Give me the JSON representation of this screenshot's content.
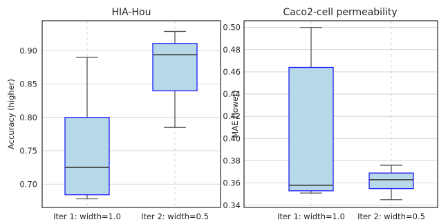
{
  "chart_data": [
    {
      "type": "box",
      "title": "HIA-Hou",
      "xlabel": "",
      "ylabel": "Accuracy (higher)",
      "categories": [
        "Iter 1: width=1.0",
        "Iter 2: width=0.5"
      ],
      "ylim": [
        0.665,
        0.945
      ],
      "yticks": [
        0.7,
        0.75,
        0.8,
        0.85,
        0.9
      ],
      "ytick_labels": [
        "0.70",
        "0.75",
        "0.80",
        "0.85",
        "0.90"
      ],
      "boxes": [
        {
          "min": 0.678,
          "q1": 0.684,
          "median": 0.725,
          "q3": 0.8,
          "max": 0.89
        },
        {
          "min": 0.785,
          "q1": 0.84,
          "median": 0.894,
          "q3": 0.911,
          "max": 0.929
        }
      ],
      "grid": true,
      "box_fill": "#b7d8e6",
      "box_edge": "#1a1aff"
    },
    {
      "type": "box",
      "title": "Caco2-cell permeability",
      "xlabel": "",
      "ylabel": "MAE (lower)",
      "categories": [
        "Iter 1: width=1.0",
        "Iter 2: width=0.5"
      ],
      "ylim": [
        0.338,
        0.506
      ],
      "yticks": [
        0.34,
        0.36,
        0.38,
        0.4,
        0.42,
        0.44,
        0.46,
        0.48,
        0.5
      ],
      "ytick_labels": [
        "0.34",
        "0.36",
        "0.38",
        "0.40",
        "0.42",
        "0.44",
        "0.46",
        "0.48",
        "0.50"
      ],
      "boxes": [
        {
          "min": 0.351,
          "q1": 0.353,
          "median": 0.358,
          "q3": 0.464,
          "max": 0.5
        },
        {
          "min": 0.345,
          "q1": 0.355,
          "median": 0.363,
          "q3": 0.369,
          "max": 0.376
        }
      ],
      "grid": true,
      "box_fill": "#b7d8e6",
      "box_edge": "#1a1aff"
    }
  ]
}
